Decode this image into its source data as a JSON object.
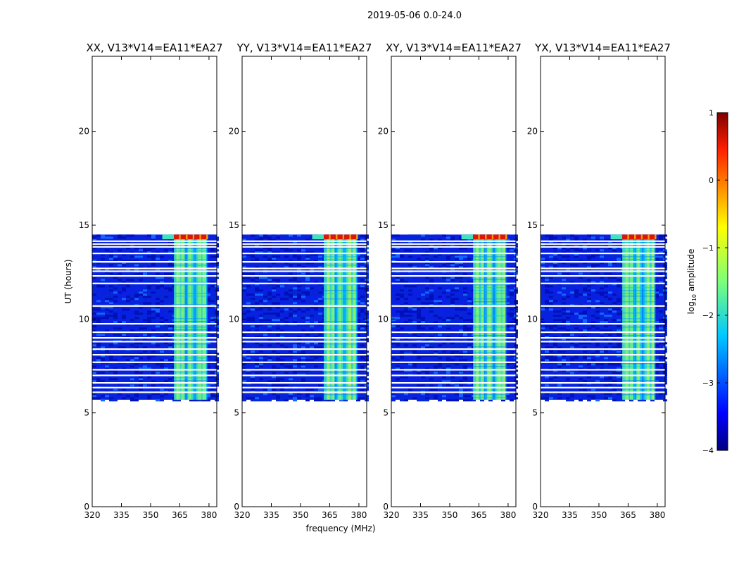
{
  "chart_data": {
    "type": "heatmap",
    "title": "2019-05-06 0.0-24.0",
    "xlabel": "frequency (MHz)",
    "ylabel": "UT (hours)",
    "xlim": [
      320,
      384
    ],
    "ylim": [
      0,
      24
    ],
    "x_ticks": [
      320,
      335,
      350,
      365,
      380
    ],
    "y_ticks": [
      0,
      5,
      10,
      15,
      20
    ],
    "data_time_range_hours": [
      5.7,
      14.5
    ],
    "rfi_band_mhz": [
      362,
      379
    ],
    "saturated_rows_hours": [
      14.25,
      14.5
    ],
    "flagged_rows_hours": [
      6.1,
      6.35,
      6.6,
      7.0,
      7.3,
      7.7,
      8.1,
      8.4,
      8.8,
      9.0,
      9.3,
      9.75,
      10.7,
      11.9,
      12.3,
      12.55,
      12.7,
      13.05,
      13.5,
      13.85,
      14.0,
      14.15
    ],
    "panels": [
      {
        "title": "XX, V13*V14=EA11*EA27"
      },
      {
        "title": "YY, V13*V14=EA11*EA27"
      },
      {
        "title": "XY, V13*V14=EA11*EA27"
      },
      {
        "title": "YX, V13*V14=EA11*EA27"
      }
    ],
    "colorbar": {
      "label_prefix": "log",
      "label_sub": "10",
      "label_suffix": " amplitude",
      "range": [
        -4,
        1
      ],
      "ticks": [
        1,
        0,
        -1,
        -2,
        -3,
        -4
      ],
      "colormap": "jet"
    }
  }
}
